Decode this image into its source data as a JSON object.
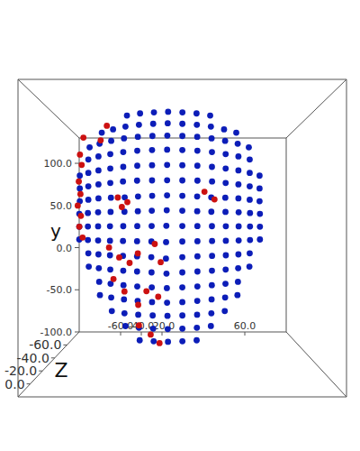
{
  "chart_data": {
    "type": "scatter",
    "y_label": "y",
    "z_label": "Z",
    "xlim": [
      -100,
      100
    ],
    "ylim": [
      -100,
      130
    ],
    "zlim": [
      -80,
      20
    ],
    "xticks": [
      {
        "value": -60,
        "label": "-60.0"
      },
      {
        "value": -40,
        "label": "-40.0"
      },
      {
        "value": -20,
        "label": "-20.0"
      },
      {
        "value": 60,
        "label": "60.0"
      }
    ],
    "yticks": [
      {
        "value": 100,
        "label": "100.0"
      },
      {
        "value": 50,
        "label": "50.0"
      },
      {
        "value": 0,
        "label": "0.0"
      },
      {
        "value": -50,
        "label": "-50.0"
      },
      {
        "value": -100,
        "label": "-100.0"
      }
    ],
    "zticks": [
      {
        "value": -60,
        "label": "-60.0"
      },
      {
        "value": -40,
        "label": "-40.0"
      },
      {
        "value": -20,
        "label": "-20.0"
      },
      {
        "value": 0,
        "label": "0.0"
      }
    ],
    "grid": false,
    "series": [
      {
        "color": "#0c1db8",
        "marker": "circle",
        "points": [
          [
            -40,
            120,
            -22
          ],
          [
            -30,
            120,
            -18
          ],
          [
            -20,
            120,
            -16
          ],
          [
            -10,
            120,
            -15
          ],
          [
            0,
            120,
            -16
          ],
          [
            10,
            120,
            -18
          ],
          [
            20,
            120,
            -22
          ],
          [
            -60,
            108,
            -29
          ],
          [
            -50,
            108,
            -22
          ],
          [
            -40,
            108,
            -16
          ],
          [
            -30,
            108,
            -12
          ],
          [
            -20,
            108,
            -10
          ],
          [
            -10,
            108,
            -9
          ],
          [
            0,
            108,
            -10
          ],
          [
            10,
            108,
            -12
          ],
          [
            20,
            108,
            -16
          ],
          [
            30,
            108,
            -22
          ],
          [
            40,
            108,
            -29
          ],
          [
            -70,
            96,
            -32
          ],
          [
            -60,
            96,
            -23
          ],
          [
            -50,
            96,
            -16
          ],
          [
            -40,
            96,
            -10
          ],
          [
            -30,
            96,
            -6
          ],
          [
            -20,
            96,
            -4
          ],
          [
            -10,
            96,
            -3
          ],
          [
            0,
            96,
            -4
          ],
          [
            10,
            96,
            -6
          ],
          [
            20,
            96,
            -10
          ],
          [
            30,
            96,
            -16
          ],
          [
            40,
            96,
            -23
          ],
          [
            50,
            96,
            -32
          ],
          [
            -70,
            84,
            -29
          ],
          [
            -60,
            84,
            -20
          ],
          [
            -50,
            84,
            -13
          ],
          [
            -40,
            84,
            -7
          ],
          [
            -30,
            84,
            -3
          ],
          [
            -20,
            84,
            -1
          ],
          [
            -10,
            84,
            0
          ],
          [
            0,
            84,
            -1
          ],
          [
            10,
            84,
            -3
          ],
          [
            20,
            84,
            -7
          ],
          [
            30,
            84,
            -13
          ],
          [
            40,
            84,
            -20
          ],
          [
            50,
            84,
            -29
          ],
          [
            -80,
            72,
            -39
          ],
          [
            -70,
            72,
            -29
          ],
          [
            -60,
            72,
            -20
          ],
          [
            -50,
            72,
            -13
          ],
          [
            -40,
            72,
            -7
          ],
          [
            -30,
            72,
            -3
          ],
          [
            -20,
            72,
            -1
          ],
          [
            -10,
            72,
            0
          ],
          [
            0,
            72,
            -1
          ],
          [
            10,
            72,
            -3
          ],
          [
            20,
            72,
            -7
          ],
          [
            30,
            72,
            -13
          ],
          [
            40,
            72,
            -20
          ],
          [
            50,
            72,
            -29
          ],
          [
            60,
            72,
            -39
          ],
          [
            -80,
            60,
            -39
          ],
          [
            -70,
            60,
            -29
          ],
          [
            -60,
            60,
            -20
          ],
          [
            -50,
            60,
            -13
          ],
          [
            -40,
            60,
            -6
          ],
          [
            -30,
            60,
            -2
          ],
          [
            -20,
            60,
            -1
          ],
          [
            -10,
            60,
            0
          ],
          [
            0,
            60,
            -1
          ],
          [
            10,
            60,
            -2
          ],
          [
            20,
            60,
            -6
          ],
          [
            30,
            60,
            -13
          ],
          [
            40,
            60,
            -20
          ],
          [
            50,
            60,
            -29
          ],
          [
            60,
            60,
            -39
          ],
          [
            -80,
            48,
            -39
          ],
          [
            -70,
            48,
            -29
          ],
          [
            -60,
            48,
            -20
          ],
          [
            -50,
            48,
            -15
          ],
          [
            -40,
            48,
            -13
          ],
          [
            -30,
            48,
            -7
          ],
          [
            -20,
            48,
            -2
          ],
          [
            -10,
            48,
            1
          ],
          [
            0,
            48,
            -2
          ],
          [
            10,
            48,
            -7
          ],
          [
            20,
            48,
            -13
          ],
          [
            30,
            48,
            -15
          ],
          [
            40,
            48,
            -20
          ],
          [
            50,
            48,
            -29
          ],
          [
            60,
            48,
            -39
          ],
          [
            -80,
            36,
            -38
          ],
          [
            -70,
            36,
            -28
          ],
          [
            -60,
            36,
            -19
          ],
          [
            -50,
            36,
            -14
          ],
          [
            -40,
            36,
            -12
          ],
          [
            -30,
            36,
            -6
          ],
          [
            -20,
            36,
            1
          ],
          [
            -10,
            36,
            6
          ],
          [
            0,
            36,
            1
          ],
          [
            10,
            36,
            -6
          ],
          [
            20,
            36,
            -12
          ],
          [
            30,
            36,
            -14
          ],
          [
            40,
            36,
            -19
          ],
          [
            50,
            36,
            -28
          ],
          [
            60,
            36,
            -38
          ],
          [
            -80,
            24,
            -38
          ],
          [
            -70,
            24,
            -28
          ],
          [
            -60,
            24,
            -19
          ],
          [
            -50,
            24,
            -12
          ],
          [
            -40,
            24,
            -7
          ],
          [
            -30,
            24,
            -3
          ],
          [
            -20,
            24,
            2
          ],
          [
            -10,
            24,
            12
          ],
          [
            0,
            24,
            2
          ],
          [
            10,
            24,
            -3
          ],
          [
            20,
            24,
            -7
          ],
          [
            30,
            24,
            -12
          ],
          [
            40,
            24,
            -19
          ],
          [
            50,
            24,
            -28
          ],
          [
            60,
            24,
            -38
          ],
          [
            -80,
            12,
            -38
          ],
          [
            -70,
            12,
            -28
          ],
          [
            -60,
            12,
            -19
          ],
          [
            -50,
            12,
            -12
          ],
          [
            -40,
            12,
            -6
          ],
          [
            -30,
            12,
            -2
          ],
          [
            -20,
            12,
            4
          ],
          [
            -10,
            12,
            16
          ],
          [
            0,
            12,
            4
          ],
          [
            10,
            12,
            -2
          ],
          [
            20,
            12,
            -6
          ],
          [
            30,
            12,
            -12
          ],
          [
            40,
            12,
            -19
          ],
          [
            50,
            12,
            -28
          ],
          [
            60,
            12,
            -38
          ],
          [
            -70,
            0,
            -29
          ],
          [
            -60,
            0,
            -20
          ],
          [
            -50,
            0,
            -12
          ],
          [
            -40,
            0,
            -6
          ],
          [
            -30,
            0,
            -2
          ],
          [
            -20,
            0,
            5
          ],
          [
            -10,
            0,
            18
          ],
          [
            0,
            0,
            5
          ],
          [
            10,
            0,
            -2
          ],
          [
            20,
            0,
            -6
          ],
          [
            30,
            0,
            -12
          ],
          [
            40,
            0,
            -20
          ],
          [
            50,
            0,
            -29
          ],
          [
            -70,
            -12,
            -30
          ],
          [
            -60,
            -12,
            -21
          ],
          [
            -50,
            -12,
            -13
          ],
          [
            -40,
            -12,
            -7
          ],
          [
            -30,
            -12,
            -2
          ],
          [
            -20,
            -12,
            3
          ],
          [
            -10,
            -12,
            10
          ],
          [
            0,
            -12,
            3
          ],
          [
            10,
            -12,
            -2
          ],
          [
            20,
            -12,
            -7
          ],
          [
            30,
            -12,
            -13
          ],
          [
            40,
            -12,
            -21
          ],
          [
            50,
            -12,
            -30
          ],
          [
            -60,
            -24,
            -22
          ],
          [
            -50,
            -24,
            -14
          ],
          [
            -40,
            -24,
            -8
          ],
          [
            -30,
            -24,
            -3
          ],
          [
            -20,
            -24,
            1
          ],
          [
            -10,
            -24,
            4
          ],
          [
            0,
            -24,
            1
          ],
          [
            10,
            -24,
            -3
          ],
          [
            20,
            -24,
            -8
          ],
          [
            30,
            -24,
            -14
          ],
          [
            40,
            -24,
            -22
          ],
          [
            -60,
            -36,
            -24
          ],
          [
            -50,
            -36,
            -16
          ],
          [
            -40,
            -36,
            -10
          ],
          [
            -30,
            -36,
            -5
          ],
          [
            -20,
            -36,
            -1
          ],
          [
            -10,
            -36,
            1
          ],
          [
            0,
            -36,
            -1
          ],
          [
            10,
            -36,
            -5
          ],
          [
            20,
            -36,
            -10
          ],
          [
            30,
            -36,
            -16
          ],
          [
            40,
            -36,
            -24
          ],
          [
            -50,
            -48,
            -18
          ],
          [
            -40,
            -48,
            -12
          ],
          [
            -30,
            -48,
            -8
          ],
          [
            -20,
            -48,
            -6
          ],
          [
            -10,
            -48,
            -5
          ],
          [
            0,
            -48,
            -6
          ],
          [
            10,
            -48,
            -8
          ],
          [
            20,
            -48,
            -12
          ],
          [
            30,
            -48,
            -18
          ],
          [
            -40,
            -60,
            -16
          ],
          [
            -30,
            -60,
            -12
          ],
          [
            -20,
            -60,
            -10
          ],
          [
            -10,
            -60,
            -9
          ],
          [
            0,
            -60,
            -10
          ],
          [
            10,
            -60,
            -12
          ],
          [
            20,
            -60,
            -16
          ],
          [
            -30,
            -72,
            -16
          ],
          [
            -20,
            -72,
            -14
          ],
          [
            -10,
            -72,
            -13
          ],
          [
            0,
            -72,
            -14
          ],
          [
            10,
            -72,
            -16
          ]
        ]
      },
      {
        "color": "#cc1111",
        "marker": "circle",
        "points": [
          [
            -74,
            104,
            -30
          ],
          [
            -78,
            90,
            -34
          ],
          [
            -76,
            80,
            -32
          ],
          [
            -80,
            66,
            -37
          ],
          [
            -78,
            54,
            -35
          ],
          [
            -82,
            44,
            -40
          ],
          [
            -78,
            34,
            -36
          ],
          [
            -80,
            24,
            -38
          ],
          [
            -76,
            14,
            -34
          ],
          [
            -60,
            100,
            -26
          ],
          [
            -55,
            112,
            -24
          ],
          [
            -45,
            48,
            -14
          ],
          [
            -38,
            44,
            -12
          ],
          [
            -42,
            40,
            -13
          ],
          [
            15,
            52,
            -8
          ],
          [
            22,
            46,
            -10
          ],
          [
            -52,
            6,
            -18
          ],
          [
            -44,
            -2,
            -14
          ],
          [
            -36,
            -6,
            -9
          ],
          [
            -30,
            2,
            -6
          ],
          [
            -18,
            10,
            2
          ],
          [
            -14,
            -4,
            4
          ],
          [
            -48,
            -20,
            -14
          ],
          [
            -40,
            -30,
            -12
          ],
          [
            -24,
            -28,
            -4
          ],
          [
            -16,
            -32,
            -2
          ],
          [
            -30,
            -40,
            -8
          ],
          [
            -30,
            -58,
            -12
          ],
          [
            -22,
            -66,
            -13
          ],
          [
            -16,
            -74,
            -15
          ]
        ]
      }
    ]
  }
}
